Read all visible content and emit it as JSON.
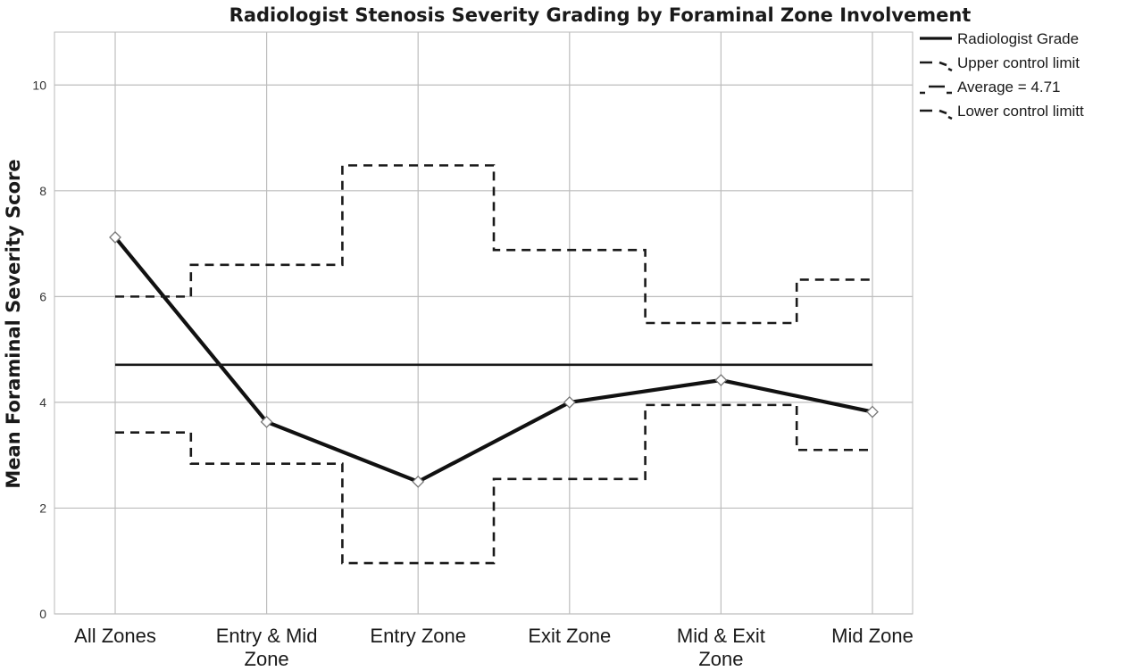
{
  "chart_data": {
    "type": "line",
    "title": "Radiologist Stenosis Severity Grading by Foraminal Zone Involvement",
    "xlabel": "",
    "ylabel": "Mean Foraminal Severity Score",
    "categories": [
      "All Zones",
      "Entry & Mid Zone",
      "Entry Zone",
      "Exit Zone",
      "Mid & Exit Zone",
      "Mid Zone"
    ],
    "ylim": [
      0,
      11
    ],
    "yticks": [
      0,
      2,
      4,
      6,
      8,
      10
    ],
    "grid": true,
    "legend_position": "top-right",
    "series": [
      {
        "name": "Radiologist Grade",
        "style": "solid",
        "marker": "diamond",
        "values": [
          7.12,
          3.63,
          2.5,
          4.0,
          4.42,
          3.82
        ]
      },
      {
        "name": "Upper control limit",
        "style": "dashed-step",
        "values": [
          6.0,
          6.6,
          8.48,
          6.88,
          5.5,
          6.32
        ]
      },
      {
        "name": "Average = 4.71",
        "style": "solid-flat",
        "values": [
          4.71,
          4.71,
          4.71,
          4.71,
          4.71,
          4.71
        ]
      },
      {
        "name": "Lower control limitt",
        "style": "dashed-step",
        "values": [
          3.43,
          2.84,
          0.96,
          2.55,
          3.95,
          3.1
        ]
      }
    ]
  }
}
